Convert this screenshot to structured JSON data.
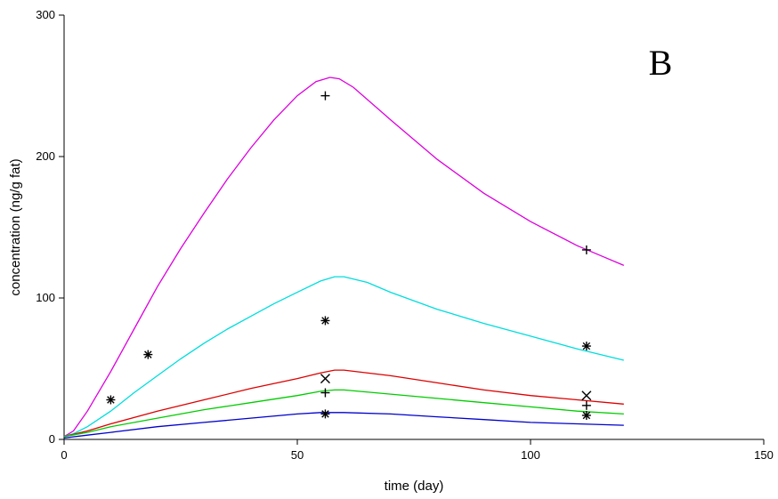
{
  "chart_data": {
    "type": "line",
    "panel_label": "B",
    "title": "",
    "xlabel": "time (day)",
    "ylabel": "concentration (ng/g fat)",
    "xlim": [
      0,
      150
    ],
    "ylim": [
      0,
      300
    ],
    "x_ticks": [
      0,
      50,
      100,
      150
    ],
    "y_ticks": [
      0,
      100,
      200,
      300
    ],
    "grid": false,
    "series": [
      {
        "color": "#dd00dd",
        "x": [
          0,
          2,
          5,
          10,
          15,
          20,
          25,
          30,
          35,
          40,
          45,
          50,
          54,
          57,
          59,
          62,
          70,
          80,
          90,
          100,
          110,
          115,
          120
        ],
        "y": [
          2,
          6,
          20,
          48,
          78,
          108,
          135,
          160,
          184,
          206,
          226,
          243,
          253,
          256,
          255,
          249,
          226,
          198,
          174,
          154,
          137,
          130,
          123
        ]
      },
      {
        "color": "#00dddd",
        "x": [
          0,
          2,
          5,
          10,
          15,
          20,
          25,
          30,
          35,
          40,
          45,
          50,
          55,
          58,
          60,
          65,
          70,
          80,
          90,
          100,
          110,
          115,
          120
        ],
        "y": [
          2,
          4,
          9,
          20,
          33,
          45,
          57,
          68,
          78,
          87,
          96,
          104,
          112,
          115,
          115,
          111,
          104,
          92,
          82,
          73,
          64,
          60,
          56
        ]
      },
      {
        "color": "#dd0000",
        "x": [
          0,
          5,
          10,
          20,
          30,
          40,
          50,
          55,
          58,
          60,
          70,
          80,
          90,
          100,
          110,
          120
        ],
        "y": [
          2,
          6,
          11,
          20,
          28,
          36,
          43,
          47,
          49,
          49,
          45,
          40,
          35,
          31,
          28,
          25
        ]
      },
      {
        "color": "#00cc00",
        "x": [
          0,
          5,
          10,
          20,
          30,
          40,
          50,
          55,
          58,
          60,
          70,
          80,
          90,
          100,
          110,
          120
        ],
        "y": [
          2,
          5,
          9,
          15,
          21,
          26,
          31,
          34,
          35,
          35,
          32,
          29,
          26,
          23,
          20,
          18
        ]
      },
      {
        "color": "#0000cc",
        "x": [
          0,
          5,
          10,
          20,
          30,
          40,
          50,
          55,
          58,
          60,
          70,
          80,
          90,
          100,
          110,
          120
        ],
        "y": [
          1,
          3,
          5,
          9,
          12,
          15,
          18,
          19,
          19,
          19,
          18,
          16,
          14,
          12,
          11,
          10
        ]
      }
    ],
    "markers": [
      {
        "symbol": "plus",
        "x": 56,
        "y": 243
      },
      {
        "symbol": "plus",
        "x": 112,
        "y": 134
      },
      {
        "symbol": "asterisk",
        "x": 10,
        "y": 28
      },
      {
        "symbol": "asterisk",
        "x": 18,
        "y": 60
      },
      {
        "symbol": "asterisk",
        "x": 56,
        "y": 84
      },
      {
        "symbol": "asterisk",
        "x": 112,
        "y": 66
      },
      {
        "symbol": "cross",
        "x": 56,
        "y": 43
      },
      {
        "symbol": "cross",
        "x": 112,
        "y": 31
      },
      {
        "symbol": "plus",
        "x": 56,
        "y": 33
      },
      {
        "symbol": "plus",
        "x": 112,
        "y": 24
      },
      {
        "symbol": "asterisk",
        "x": 56,
        "y": 18
      },
      {
        "symbol": "asterisk",
        "x": 112,
        "y": 17
      }
    ]
  }
}
